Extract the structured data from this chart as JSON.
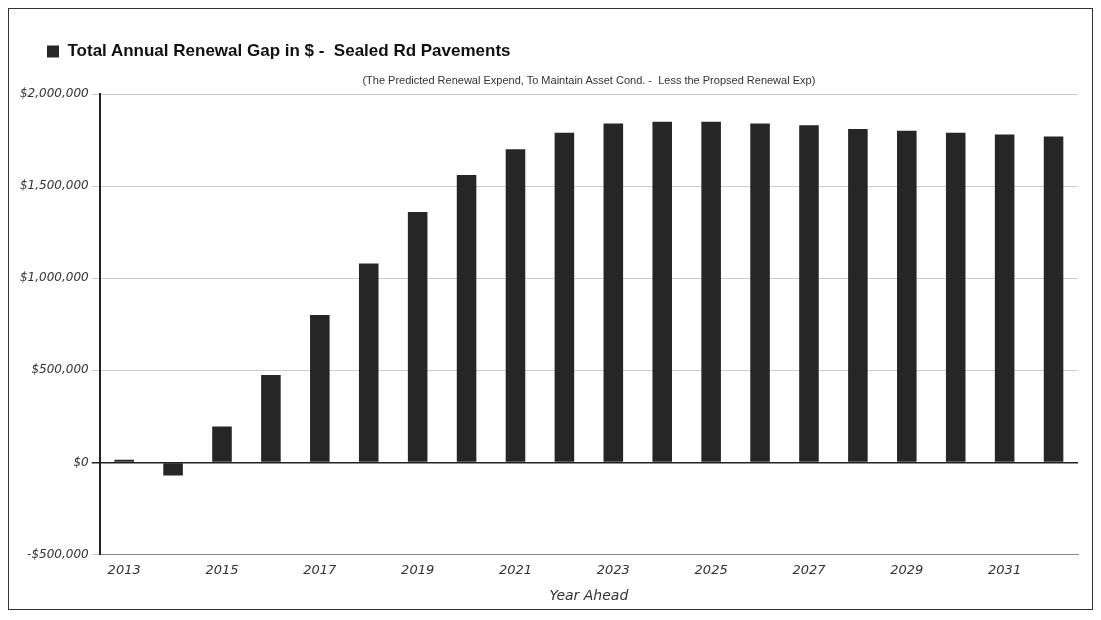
{
  "chart_data": {
    "type": "bar",
    "subtitle": "(The Predicted Renewal Expend, To Maintain Asset Cond. -  Less the Propsed Renewal Exp)",
    "xlabel": "Year Ahead",
    "categories": [
      "2013",
      null,
      "2015",
      null,
      "2017",
      null,
      "2019",
      null,
      "2021",
      null,
      "2023",
      null,
      "2025",
      null,
      "2027",
      null,
      "2029",
      null,
      "2031",
      null
    ],
    "series": [
      {
        "name": "Total Annual Renewal Gap in $ -  Sealed Rd Pavements",
        "color": "#262626",
        "values": [
          15000,
          -70000,
          195000,
          475000,
          800000,
          1080000,
          1360000,
          1560000,
          1700000,
          1790000,
          1840000,
          1850000,
          1850000,
          1840000,
          1830000,
          1810000,
          1800000,
          1790000,
          1780000,
          1770000
        ]
      }
    ],
    "ylim": [
      -500000,
      2000000
    ],
    "yticks": [
      {
        "value": -500000,
        "label": "-$500,000"
      },
      {
        "value": 0,
        "label": "$0"
      },
      {
        "value": 500000,
        "label": "$500,000"
      },
      {
        "value": 1000000,
        "label": "$1,000,000"
      },
      {
        "value": 1500000,
        "label": "$1,500,000"
      },
      {
        "value": 2000000,
        "label": "$2,000,000"
      }
    ],
    "grid": "y",
    "legend": "top left"
  }
}
